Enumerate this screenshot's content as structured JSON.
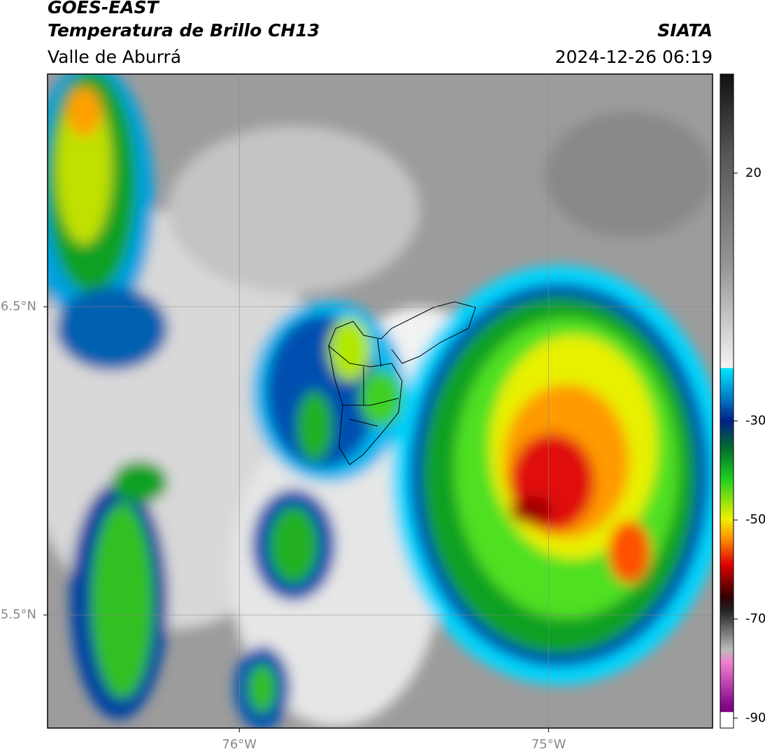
{
  "header": {
    "title": "GOES-EAST",
    "subtitle": "Temperatura de Brillo CH13",
    "region": "Valle de Aburrá",
    "agency": "SIATA",
    "datetime": "2024-12-26 06:19"
  },
  "map": {
    "xlim": [
      -76.62,
      -74.47
    ],
    "ylim": [
      5.133,
      7.255
    ],
    "xticks": [
      {
        "value": -76,
        "label": "76°W"
      },
      {
        "value": -75,
        "label": "75°W"
      }
    ],
    "yticks": [
      {
        "value": 6.5,
        "label": "6.5°N"
      },
      {
        "value": 5.5,
        "label": "5.5°N"
      }
    ],
    "grid": true
  },
  "colorbar": {
    "lim": [
      -92,
      40
    ],
    "ticks": [
      20,
      -30,
      -50,
      -70,
      -90
    ]
  }
}
